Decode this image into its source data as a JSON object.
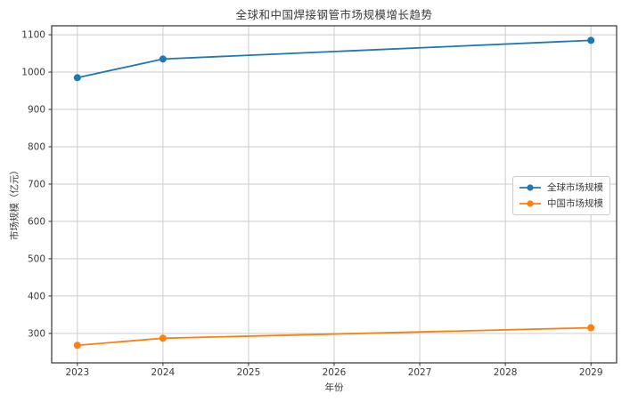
{
  "title": "全球和中国焊接钢管市场规模增长趋势",
  "chart_data": {
    "type": "line",
    "x": [
      2023,
      2024,
      2029
    ],
    "series": [
      {
        "name": "全球市场规模",
        "color": "#1f77b4",
        "values": [
          985,
          1035,
          1085
        ]
      },
      {
        "name": "中国市场规模",
        "color": "#ff7f0e",
        "values": [
          268,
          287,
          315
        ]
      }
    ],
    "title": "全球和中国焊接钢管市场规模增长趋势",
    "xlabel": "年份",
    "ylabel": "市场规模（亿元）",
    "xticks": [
      2023,
      2024,
      2025,
      2026,
      2027,
      2028,
      2029
    ],
    "yticks": [
      300,
      400,
      500,
      600,
      700,
      800,
      900,
      1000,
      1100
    ],
    "xlim": [
      2022.7,
      2029.3
    ],
    "ylim": [
      221,
      1124
    ],
    "grid": true,
    "legend_position": "center-right",
    "marker": "o"
  },
  "colors": {
    "grid": "#cccccc",
    "spine": "#333333",
    "tick_text": "#3a3a3a",
    "background": "#ffffff",
    "legend_border": "#cccccc",
    "series_blue": "#1f77b4",
    "series_orange": "#ff7f0e"
  }
}
